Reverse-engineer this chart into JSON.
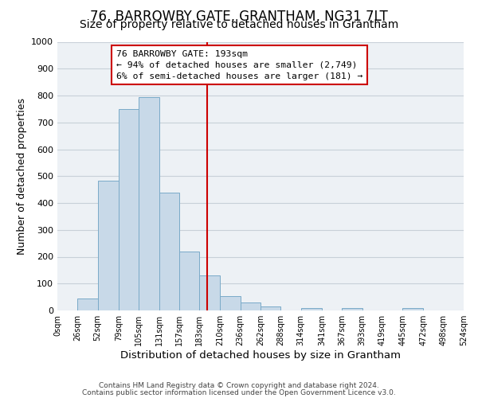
{
  "title": "76, BARROWBY GATE, GRANTHAM, NG31 7LT",
  "subtitle": "Size of property relative to detached houses in Grantham",
  "xlabel": "Distribution of detached houses by size in Grantham",
  "ylabel": "Number of detached properties",
  "bar_left_edges": [
    0,
    26,
    52,
    79,
    105,
    131,
    157,
    183,
    210,
    236,
    262,
    288,
    314,
    341,
    367,
    393,
    419,
    445,
    472,
    498
  ],
  "bar_widths": [
    26,
    26,
    27,
    26,
    26,
    26,
    26,
    27,
    26,
    26,
    26,
    26,
    27,
    26,
    26,
    26,
    26,
    27,
    26,
    26
  ],
  "bar_heights": [
    0,
    44,
    483,
    749,
    793,
    438,
    220,
    130,
    52,
    30,
    15,
    0,
    8,
    0,
    8,
    0,
    0,
    8,
    0,
    0
  ],
  "bar_color": "#c8d9e8",
  "bar_edge_color": "#7aaac8",
  "property_size": 193,
  "vline_color": "#cc0000",
  "annotation_text_line1": "76 BARROWBY GATE: 193sqm",
  "annotation_text_line2": "← 94% of detached houses are smaller (2,749)",
  "annotation_text_line3": "6% of semi-detached houses are larger (181) →",
  "ylim": [
    0,
    1000
  ],
  "yticks": [
    0,
    100,
    200,
    300,
    400,
    500,
    600,
    700,
    800,
    900,
    1000
  ],
  "xtick_labels": [
    "0sqm",
    "26sqm",
    "52sqm",
    "79sqm",
    "105sqm",
    "131sqm",
    "157sqm",
    "183sqm",
    "210sqm",
    "236sqm",
    "262sqm",
    "288sqm",
    "314sqm",
    "341sqm",
    "367sqm",
    "393sqm",
    "419sqm",
    "445sqm",
    "472sqm",
    "498sqm",
    "524sqm"
  ],
  "xtick_positions": [
    0,
    26,
    52,
    79,
    105,
    131,
    157,
    183,
    210,
    236,
    262,
    288,
    314,
    341,
    367,
    393,
    419,
    445,
    472,
    498,
    524
  ],
  "xlim": [
    0,
    524
  ],
  "grid_color": "#c8d0d8",
  "bg_color": "#edf1f5",
  "footer_line1": "Contains HM Land Registry data © Crown copyright and database right 2024.",
  "footer_line2": "Contains public sector information licensed under the Open Government Licence v3.0.",
  "title_fontsize": 12,
  "subtitle_fontsize": 10,
  "ylabel_text": "Number of detached properties"
}
